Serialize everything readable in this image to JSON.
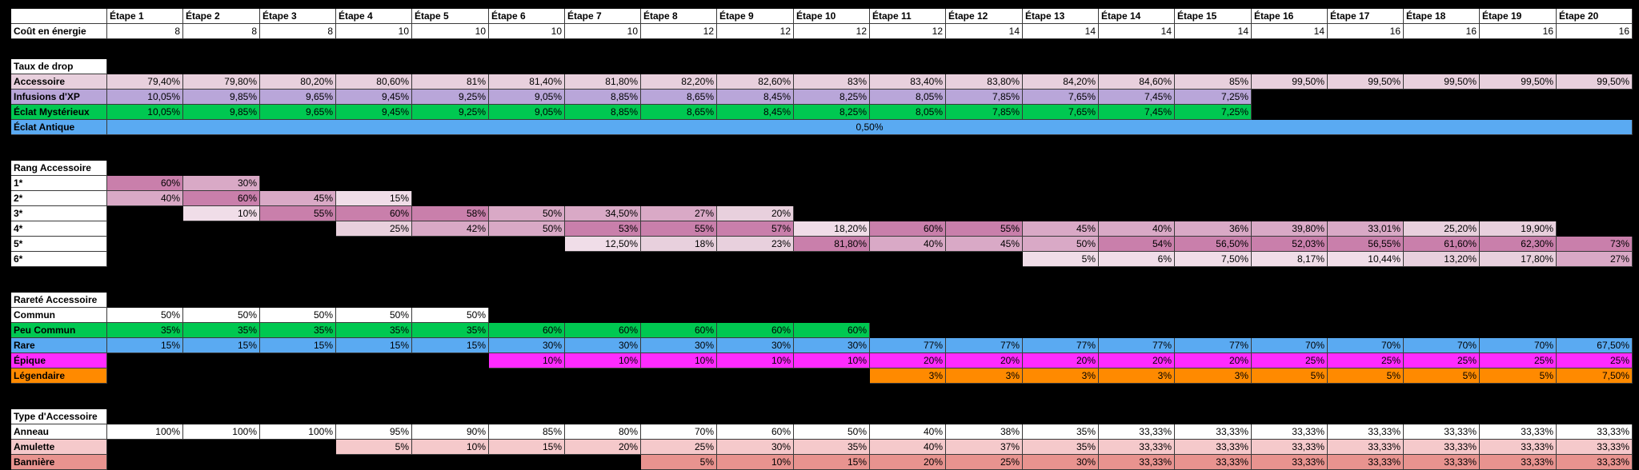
{
  "colors": {
    "white": "#ffffff",
    "black": "#000000",
    "pink1": "#e8d0dd",
    "pink2": "#d9a9c6",
    "pink3": "#c97fab",
    "pink_light": "#f0dde8",
    "lavender": "#b9a6d9",
    "green": "#00c851",
    "blue": "#5aaaf2",
    "magenta": "#ff2bff",
    "orange": "#ff8a00",
    "salmon_light": "#f5c9cb",
    "salmon": "#e8938f"
  },
  "stages": [
    "Étape 1",
    "Étape 2",
    "Étape 3",
    "Étape 4",
    "Étape 5",
    "Étape 6",
    "Étape 7",
    "Étape 8",
    "Étape 9",
    "Étape 10",
    "Étape 11",
    "Étape 12",
    "Étape 13",
    "Étape 14",
    "Étape 15",
    "Étape 16",
    "Étape 17",
    "Étape 18",
    "Étape 19",
    "Étape 20"
  ],
  "energy": {
    "label": "Coût en énergie",
    "values": [
      "8",
      "8",
      "8",
      "10",
      "10",
      "10",
      "10",
      "12",
      "12",
      "12",
      "12",
      "14",
      "14",
      "14",
      "14",
      "14",
      "16",
      "16",
      "16",
      "16"
    ]
  },
  "sections": [
    {
      "title": "Taux de drop",
      "rows": [
        {
          "label": "Accessoire",
          "bg": "pink1",
          "values": [
            "79,40%",
            "79,80%",
            "80,20%",
            "80,60%",
            "81%",
            "81,40%",
            "81,80%",
            "82,20%",
            "82,60%",
            "83%",
            "83,40%",
            "83,80%",
            "84,20%",
            "84,60%",
            "85%",
            "99,50%",
            "99,50%",
            "99,50%",
            "99,50%",
            "99,50%"
          ]
        },
        {
          "label": "Infusions d'XP",
          "bg": "lavender",
          "values": [
            "10,05%",
            "9,85%",
            "9,65%",
            "9,45%",
            "9,25%",
            "9,05%",
            "8,85%",
            "8,65%",
            "8,45%",
            "8,25%",
            "8,05%",
            "7,85%",
            "7,65%",
            "7,45%",
            "7,25%",
            "",
            "",
            "",
            "",
            ""
          ]
        },
        {
          "label": "Éclat Mystérieux",
          "bg": "green",
          "values": [
            "10,05%",
            "9,85%",
            "9,65%",
            "9,45%",
            "9,25%",
            "9,05%",
            "8,85%",
            "8,65%",
            "8,45%",
            "8,25%",
            "8,05%",
            "7,85%",
            "7,65%",
            "7,45%",
            "7,25%",
            "",
            "",
            "",
            "",
            ""
          ]
        },
        {
          "label": "Éclat Antique",
          "bg": "blue",
          "merged": "0,50%"
        }
      ]
    },
    {
      "title": "Rang Accessoire",
      "rows": [
        {
          "label": "1*",
          "bg": "white",
          "values": [
            "60%",
            "30%",
            "",
            "",
            "",
            "",
            "",
            "",
            "",
            "",
            "",
            "",
            "",
            "",
            "",
            "",
            "",
            "",
            "",
            ""
          ],
          "cellbg": [
            "pink3",
            "pink2",
            "",
            "",
            "",
            "",
            "",
            "",
            "",
            "",
            "",
            "",
            "",
            "",
            "",
            "",
            "",
            "",
            "",
            ""
          ]
        },
        {
          "label": "2*",
          "bg": "white",
          "values": [
            "40%",
            "60%",
            "45%",
            "15%",
            "",
            "",
            "",
            "",
            "",
            "",
            "",
            "",
            "",
            "",
            "",
            "",
            "",
            "",
            "",
            ""
          ],
          "cellbg": [
            "pink2",
            "pink3",
            "pink2",
            "pink_light",
            "",
            "",
            "",
            "",
            "",
            "",
            "",
            "",
            "",
            "",
            "",
            "",
            "",
            "",
            "",
            ""
          ]
        },
        {
          "label": "3*",
          "bg": "white",
          "values": [
            "",
            "10%",
            "55%",
            "60%",
            "58%",
            "50%",
            "34,50%",
            "27%",
            "20%",
            "",
            "",
            "",
            "",
            "",
            "",
            "",
            "",
            "",
            "",
            ""
          ],
          "cellbg": [
            "",
            "pink_light",
            "pink3",
            "pink3",
            "pink3",
            "pink2",
            "pink2",
            "pink2",
            "pink1",
            "",
            "",
            "",
            "",
            "",
            "",
            "",
            "",
            "",
            "",
            ""
          ]
        },
        {
          "label": "4*",
          "bg": "white",
          "values": [
            "",
            "",
            "",
            "25%",
            "42%",
            "50%",
            "53%",
            "55%",
            "57%",
            "18,20%",
            "60%",
            "55%",
            "45%",
            "40%",
            "36%",
            "39,80%",
            "33,01%",
            "25,20%",
            "19,90%",
            ""
          ],
          "cellbg": [
            "",
            "",
            "",
            "pink1",
            "pink2",
            "pink2",
            "pink3",
            "pink3",
            "pink3",
            "pink_light",
            "pink3",
            "pink3",
            "pink2",
            "pink2",
            "pink2",
            "pink2",
            "pink2",
            "pink1",
            "pink1",
            ""
          ]
        },
        {
          "label": "5*",
          "bg": "white",
          "values": [
            "",
            "",
            "",
            "",
            "",
            "",
            "12,50%",
            "18%",
            "23%",
            "81,80%",
            "40%",
            "45%",
            "50%",
            "54%",
            "56,50%",
            "52,03%",
            "56,55%",
            "61,60%",
            "62,30%",
            "73%"
          ],
          "cellbg": [
            "",
            "",
            "",
            "",
            "",
            "",
            "pink_light",
            "pink1",
            "pink1",
            "pink3",
            "pink2",
            "pink2",
            "pink2",
            "pink3",
            "pink3",
            "pink3",
            "pink3",
            "pink3",
            "pink3",
            "pink3"
          ]
        },
        {
          "label": "6*",
          "bg": "white",
          "values": [
            "",
            "",
            "",
            "",
            "",
            "",
            "",
            "",
            "",
            "",
            "",
            "",
            "5%",
            "6%",
            "7,50%",
            "8,17%",
            "10,44%",
            "13,20%",
            "17,80%",
            "27%"
          ],
          "cellbg": [
            "",
            "",
            "",
            "",
            "",
            "",
            "",
            "",
            "",
            "",
            "",
            "",
            "pink_light",
            "pink_light",
            "pink_light",
            "pink_light",
            "pink_light",
            "pink1",
            "pink1",
            "pink2"
          ]
        }
      ]
    },
    {
      "title": "Rareté Accessoire",
      "rows": [
        {
          "label": "Commun",
          "bg": "white",
          "values": [
            "50%",
            "50%",
            "50%",
            "50%",
            "50%",
            "",
            "",
            "",
            "",
            "",
            "",
            "",
            "",
            "",
            "",
            "",
            "",
            "",
            "",
            ""
          ]
        },
        {
          "label": "Peu Commun",
          "bg": "green",
          "values": [
            "35%",
            "35%",
            "35%",
            "35%",
            "35%",
            "60%",
            "60%",
            "60%",
            "60%",
            "60%",
            "",
            "",
            "",
            "",
            "",
            "",
            "",
            "",
            "",
            ""
          ]
        },
        {
          "label": "Rare",
          "bg": "blue",
          "values": [
            "15%",
            "15%",
            "15%",
            "15%",
            "15%",
            "30%",
            "30%",
            "30%",
            "30%",
            "30%",
            "77%",
            "77%",
            "77%",
            "77%",
            "77%",
            "70%",
            "70%",
            "70%",
            "70%",
            "67,50%"
          ]
        },
        {
          "label": "Épique",
          "bg": "magenta",
          "values": [
            "",
            "",
            "",
            "",
            "",
            "10%",
            "10%",
            "10%",
            "10%",
            "10%",
            "20%",
            "20%",
            "20%",
            "20%",
            "20%",
            "25%",
            "25%",
            "25%",
            "25%",
            "25%"
          ]
        },
        {
          "label": "Légendaire",
          "bg": "orange",
          "values": [
            "",
            "",
            "",
            "",
            "",
            "",
            "",
            "",
            "",
            "",
            "3%",
            "3%",
            "3%",
            "3%",
            "3%",
            "5%",
            "5%",
            "5%",
            "5%",
            "7,50%"
          ]
        }
      ]
    },
    {
      "title": "Type d'Accessoire",
      "rows": [
        {
          "label": "Anneau",
          "bg": "white",
          "values": [
            "100%",
            "100%",
            "100%",
            "95%",
            "90%",
            "85%",
            "80%",
            "70%",
            "60%",
            "50%",
            "40%",
            "38%",
            "35%",
            "33,33%",
            "33,33%",
            "33,33%",
            "33,33%",
            "33,33%",
            "33,33%",
            "33,33%"
          ]
        },
        {
          "label": "Amulette",
          "bg": "salmon_light",
          "values": [
            "",
            "",
            "",
            "5%",
            "10%",
            "15%",
            "20%",
            "25%",
            "30%",
            "35%",
            "40%",
            "37%",
            "35%",
            "33,33%",
            "33,33%",
            "33,33%",
            "33,33%",
            "33,33%",
            "33,33%",
            "33,33%"
          ]
        },
        {
          "label": "Bannière",
          "bg": "salmon",
          "values": [
            "",
            "",
            "",
            "",
            "",
            "",
            "",
            "5%",
            "10%",
            "15%",
            "20%",
            "25%",
            "30%",
            "33,33%",
            "33,33%",
            "33,33%",
            "33,33%",
            "33,33%",
            "33,33%",
            "33,33%"
          ]
        }
      ]
    }
  ]
}
